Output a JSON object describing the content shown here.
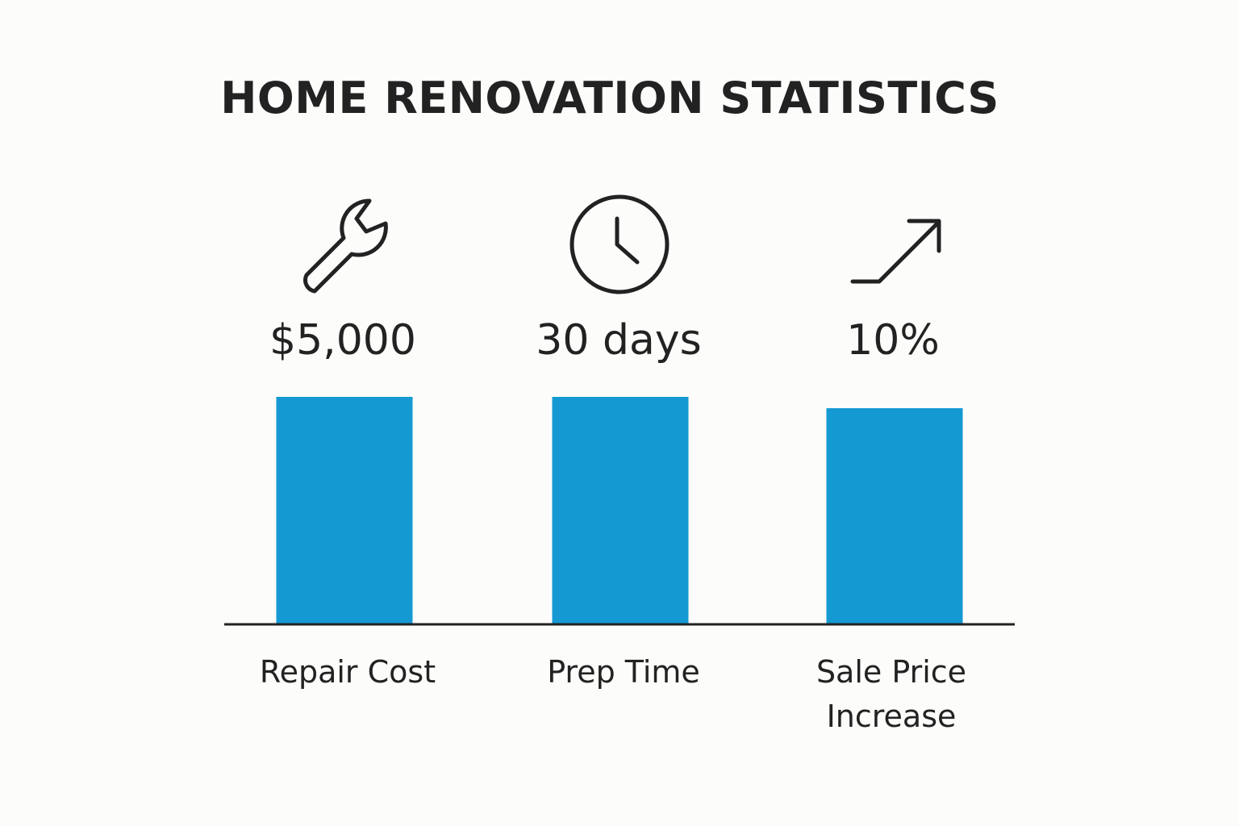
{
  "chart_data": {
    "type": "bar",
    "title": "HOME RENOVATION STATISTICS",
    "categories": [
      "Repair Cost",
      "Prep Time",
      "Sale Price Increase"
    ],
    "value_labels": [
      "$5,000",
      "30 days",
      "10%"
    ],
    "icons": [
      "wrench-icon",
      "clock-icon",
      "trend-up-arrow-icon"
    ],
    "relative_heights": [
      1.0,
      1.0,
      0.95
    ],
    "bar_color": "#1499d3",
    "axis_color": "#222222",
    "grid": false,
    "legend": "none"
  }
}
